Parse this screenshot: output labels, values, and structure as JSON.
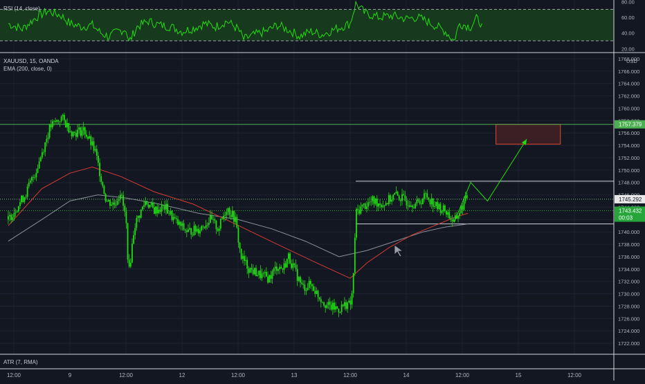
{
  "indicators": {
    "rsi_label": "RSI (14, close)",
    "symbol_label": "XAUUSD, 15, OANDA",
    "ema_label": "EMA (200, close, 0)",
    "atr_label": "ATR (7, RMA)"
  },
  "price_scale": {
    "currency": "USD",
    "ticks": [
      "1722.000",
      "1724.000",
      "1726.000",
      "1728.000",
      "1730.000",
      "1732.000",
      "1734.000",
      "1736.000",
      "1738.000",
      "1740.000",
      "1742.000",
      "1744.000",
      "1746.000",
      "1748.000",
      "1750.000",
      "1752.000",
      "1754.000",
      "1756.000",
      "1758.000",
      "1760.000",
      "1762.000",
      "1764.000",
      "1766.000",
      "1768.000"
    ],
    "tag_resistance": "1757.379",
    "tag_last": "1745.292",
    "tag_current": "1743.432",
    "tag_countdown": "00:03"
  },
  "rsi_scale": {
    "ticks": [
      "20.00",
      "40.00",
      "60.00",
      "80.00"
    ]
  },
  "time_axis": {
    "labels": [
      "12:00",
      "9",
      "12:00",
      "12",
      "12:00",
      "13",
      "12:00",
      "14",
      "12:00",
      "15",
      "12:00"
    ]
  },
  "colors": {
    "background": "#131722",
    "candle": "#22dd11",
    "ema_red": "#d83a31",
    "ema_grey": "#8a8f99",
    "resistance": "#4caf50",
    "box_border": "#e04a2c",
    "box_fill": "#3a1f24",
    "rsi_fill": "#173a1e"
  },
  "chart_data": [
    {
      "type": "candlestick",
      "title": "XAUUSD, 15, OANDA",
      "ylabel": "USD",
      "ylim": [
        1721,
        1768.5
      ],
      "x": [
        "12:00",
        "9",
        "12:00",
        "12",
        "12:00",
        "13",
        "12:00",
        "14",
        "12:00",
        "15",
        "12:00"
      ],
      "series": [
        {
          "name": "XAUUSD",
          "values": [
            [
              -0.1,
              1742.0
            ],
            [
              0.2,
              1746.0
            ],
            [
              0.4,
              1750.0
            ],
            [
              0.65,
              1757.0
            ],
            [
              0.85,
              1758.5
            ],
            [
              1.05,
              1756.0
            ],
            [
              1.25,
              1756.5
            ],
            [
              1.45,
              1753.0
            ],
            [
              1.55,
              1749.0
            ],
            [
              1.65,
              1745.0
            ],
            [
              1.8,
              1744.5
            ],
            [
              1.9,
              1746.5
            ],
            [
              2.0,
              1742.0
            ],
            [
              2.05,
              1733.0
            ],
            [
              2.15,
              1741.0
            ],
            [
              2.35,
              1745.0
            ],
            [
              2.5,
              1743.5
            ],
            [
              2.7,
              1744.0
            ],
            [
              2.9,
              1741.5
            ],
            [
              3.1,
              1740.0
            ],
            [
              3.3,
              1740.5
            ],
            [
              3.5,
              1742.0
            ],
            [
              3.65,
              1740.5
            ],
            [
              3.8,
              1744.0
            ],
            [
              3.95,
              1742.0
            ],
            [
              4.05,
              1736.0
            ],
            [
              4.2,
              1734.0
            ],
            [
              4.4,
              1733.0
            ],
            [
              4.55,
              1732.5
            ],
            [
              4.7,
              1734.5
            ],
            [
              4.8,
              1734.0
            ],
            [
              4.9,
              1736.0
            ],
            [
              5.05,
              1733.0
            ],
            [
              5.15,
              1731.0
            ],
            [
              5.3,
              1731.5
            ],
            [
              5.45,
              1729.5
            ],
            [
              5.6,
              1728.0
            ],
            [
              5.8,
              1727.5
            ],
            [
              5.95,
              1728.5
            ],
            [
              6.0,
              1728.0
            ],
            [
              6.05,
              1731.0
            ],
            [
              6.1,
              1743.0
            ],
            [
              6.2,
              1744.0
            ],
            [
              6.4,
              1745.0
            ],
            [
              6.6,
              1744.5
            ],
            [
              6.8,
              1746.0
            ],
            [
              7.0,
              1745.0
            ],
            [
              7.2,
              1744.5
            ],
            [
              7.35,
              1746.0
            ],
            [
              7.55,
              1744.0
            ],
            [
              7.7,
              1743.5
            ],
            [
              7.85,
              1741.5
            ],
            [
              8.05,
              1745.0
            ],
            [
              8.1,
              1746.0
            ]
          ]
        },
        {
          "name": "EMA red",
          "values": [
            [
              -0.1,
              1741.0
            ],
            [
              0.5,
              1747.0
            ],
            [
              1.0,
              1749.5
            ],
            [
              1.4,
              1750.5
            ],
            [
              1.9,
              1749.0
            ],
            [
              2.5,
              1746.5
            ],
            [
              3.2,
              1744.5
            ],
            [
              3.9,
              1741.5
            ],
            [
              4.7,
              1738.0
            ],
            [
              5.4,
              1735.0
            ],
            [
              6.0,
              1732.5
            ],
            [
              6.3,
              1735.0
            ],
            [
              6.7,
              1737.5
            ],
            [
              7.1,
              1739.5
            ],
            [
              7.5,
              1741.0
            ],
            [
              7.9,
              1742.5
            ],
            [
              8.1,
              1743.0
            ]
          ]
        },
        {
          "name": "EMA grey",
          "values": [
            [
              -0.1,
              1738.5
            ],
            [
              0.5,
              1742.0
            ],
            [
              1.0,
              1745.0
            ],
            [
              1.5,
              1746.0
            ],
            [
              2.0,
              1745.5
            ],
            [
              2.6,
              1744.5
            ],
            [
              3.3,
              1743.0
            ],
            [
              4.0,
              1742.0
            ],
            [
              4.6,
              1740.5
            ],
            [
              5.2,
              1738.5
            ],
            [
              5.8,
              1736.0
            ],
            [
              6.3,
              1737.0
            ],
            [
              6.8,
              1738.5
            ],
            [
              7.3,
              1740.0
            ],
            [
              7.7,
              1740.8
            ],
            [
              8.1,
              1741.3
            ]
          ]
        },
        {
          "name": "Projection",
          "values": [
            [
              7.85,
              1741.5
            ],
            [
              8.15,
              1748.0
            ],
            [
              8.45,
              1745.0
            ],
            [
              9.15,
              1755.0
            ]
          ]
        }
      ],
      "annotations": {
        "resistance_level": 1757.4,
        "range_top": 1748.2,
        "range_bottom": 1741.3,
        "target_box": {
          "x_from": 8.6,
          "x_to": 9.75,
          "y_from": 1754.2,
          "y_to": 1757.4
        },
        "last_price": 1745.292,
        "current_price": 1743.432
      }
    },
    {
      "type": "line",
      "title": "RSI (14, close)",
      "ylim": [
        15,
        82
      ],
      "bands": [
        30,
        70
      ],
      "series": [
        {
          "name": "RSI",
          "values": [
            [
              -0.1,
              52
            ],
            [
              0.15,
              45
            ],
            [
              0.4,
              60
            ],
            [
              0.6,
              68
            ],
            [
              0.85,
              62
            ],
            [
              1.0,
              52
            ],
            [
              1.2,
              48
            ],
            [
              1.4,
              50
            ],
            [
              1.55,
              40
            ],
            [
              1.7,
              35
            ],
            [
              1.85,
              42
            ],
            [
              2.0,
              45
            ],
            [
              2.05,
              28
            ],
            [
              2.2,
              48
            ],
            [
              2.4,
              55
            ],
            [
              2.6,
              50
            ],
            [
              2.8,
              48
            ],
            [
              3.0,
              42
            ],
            [
              3.2,
              46
            ],
            [
              3.4,
              52
            ],
            [
              3.6,
              48
            ],
            [
              3.8,
              55
            ],
            [
              4.0,
              45
            ],
            [
              4.1,
              32
            ],
            [
              4.3,
              38
            ],
            [
              4.5,
              42
            ],
            [
              4.7,
              50
            ],
            [
              4.9,
              44
            ],
            [
              5.1,
              36
            ],
            [
              5.3,
              42
            ],
            [
              5.5,
              38
            ],
            [
              5.7,
              44
            ],
            [
              5.85,
              48
            ],
            [
              6.0,
              52
            ],
            [
              6.1,
              78
            ],
            [
              6.25,
              66
            ],
            [
              6.5,
              60
            ],
            [
              6.75,
              62
            ],
            [
              7.0,
              58
            ],
            [
              7.2,
              60
            ],
            [
              7.4,
              54
            ],
            [
              7.55,
              48
            ],
            [
              7.7,
              42
            ],
            [
              7.85,
              30
            ],
            [
              7.95,
              52
            ],
            [
              8.05,
              50
            ],
            [
              8.15,
              48
            ],
            [
              8.25,
              58
            ],
            [
              8.35,
              52
            ]
          ]
        }
      ]
    }
  ]
}
